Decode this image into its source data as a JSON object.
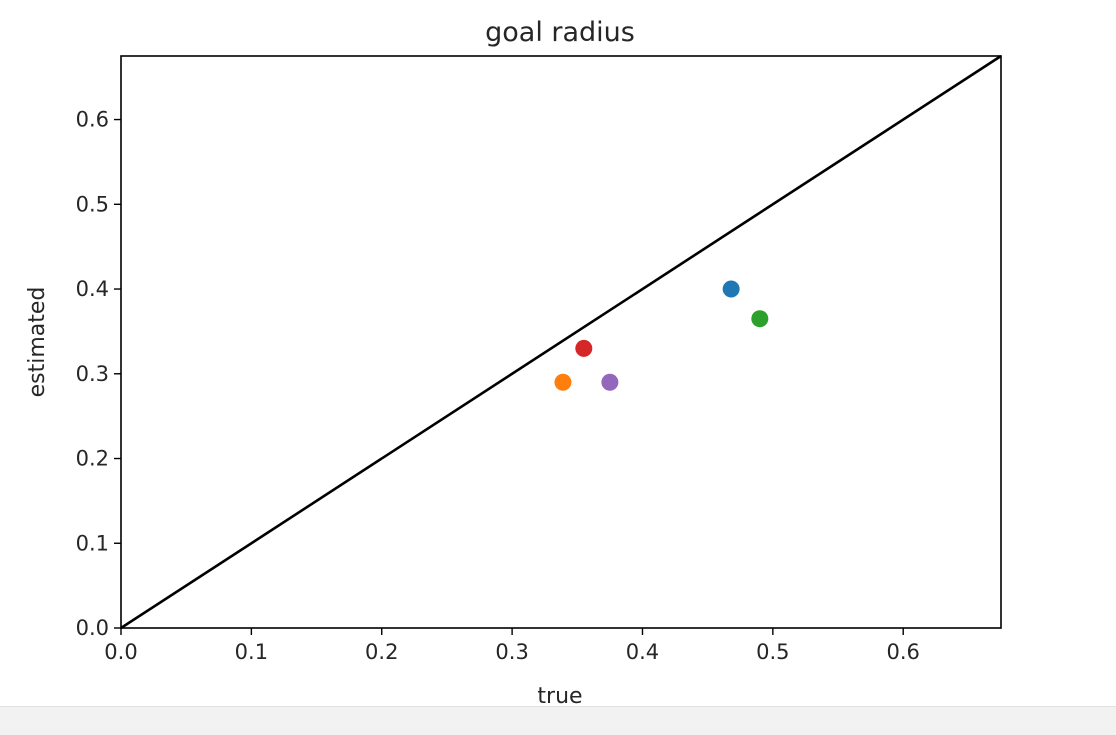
{
  "chart_data": {
    "type": "scatter",
    "title": "goal radius",
    "xlabel": "true",
    "ylabel": "estimated",
    "xlim": [
      0,
      0.675
    ],
    "ylim": [
      0,
      0.675
    ],
    "xticks": [
      "0.0",
      "0.1",
      "0.2",
      "0.3",
      "0.4",
      "0.5",
      "0.6"
    ],
    "yticks": [
      "0.0",
      "0.1",
      "0.2",
      "0.3",
      "0.4",
      "0.5",
      "0.6"
    ],
    "grid": false,
    "legend": "none",
    "reference_line": {
      "x": [
        0,
        0.675
      ],
      "y": [
        0,
        0.675
      ],
      "color": "#000000"
    },
    "points": [
      {
        "x": 0.468,
        "y": 0.4,
        "color": "#1f77b4"
      },
      {
        "x": 0.339,
        "y": 0.29,
        "color": "#ff7f0e"
      },
      {
        "x": 0.49,
        "y": 0.365,
        "color": "#2ca02c"
      },
      {
        "x": 0.355,
        "y": 0.33,
        "color": "#d62728"
      },
      {
        "x": 0.375,
        "y": 0.29,
        "color": "#9467bd"
      }
    ]
  }
}
